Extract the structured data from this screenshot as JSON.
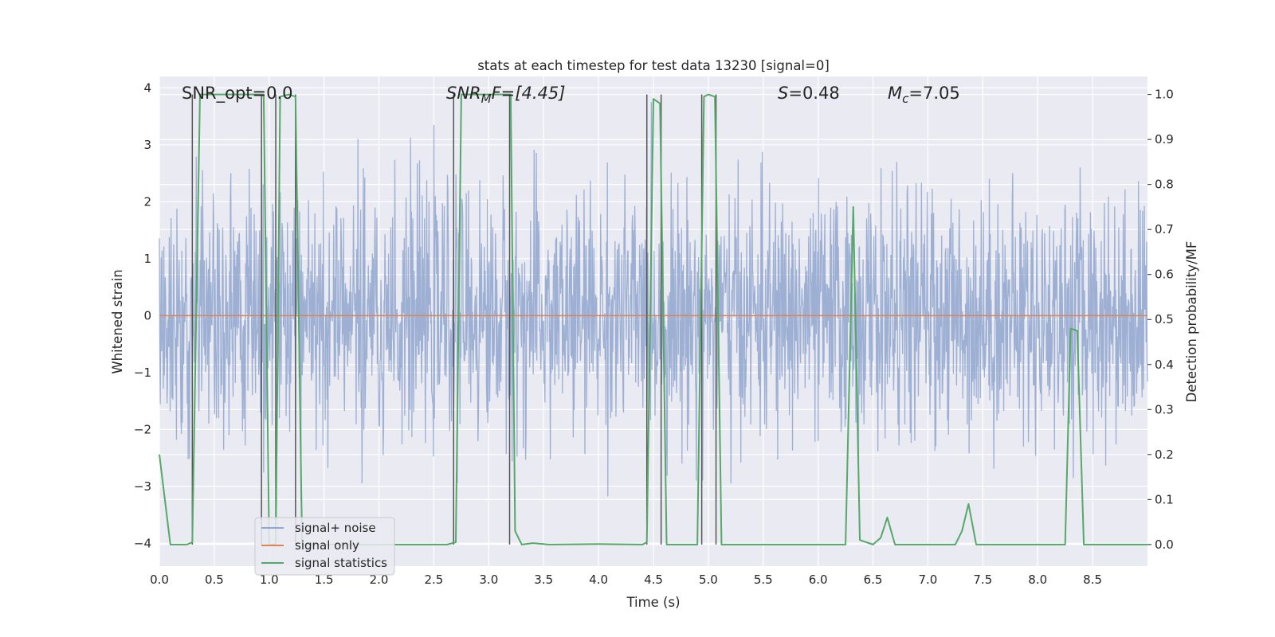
{
  "chart_data": {
    "type": "line",
    "title": "stats at each timestep for test data 13230 [signal=0]",
    "xlabel": "Time (s)",
    "ylabel": "Whitened strain",
    "ylabel_right": "Detection probability/MF",
    "xlim": [
      0.0,
      9.0
    ],
    "ylim": [
      -4.4,
      4.2
    ],
    "ylim_right": [
      -0.048,
      1.04
    ],
    "xticks": [
      "0.0",
      "0.5",
      "1.0",
      "1.5",
      "2.0",
      "2.5",
      "3.0",
      "3.5",
      "4.0",
      "4.5",
      "5.0",
      "5.5",
      "6.0",
      "6.5",
      "7.0",
      "7.5",
      "8.0",
      "8.5"
    ],
    "yticks": [
      "4",
      "3",
      "2",
      "1",
      "0",
      "−1",
      "−2",
      "−3",
      "−4"
    ],
    "yticks_right": [
      "1.0",
      "0.9",
      "0.8",
      "0.7",
      "0.6",
      "0.5",
      "0.4",
      "0.3",
      "0.2",
      "0.1",
      "0.0"
    ],
    "grid": true,
    "legend_position": "lower-left",
    "annotations": {
      "snr_opt": "SNR_opt=0.0",
      "snr_mf": "SNR",
      "snr_mf_sub": "M",
      "snr_mf_tail": "F=[4.45]",
      "s_var": "S",
      "s_val": "=0.48",
      "mc_var": "M",
      "mc_sub": "c",
      "mc_val": "=7.05"
    },
    "series": [
      {
        "name": "signal+ noise",
        "axis": "left",
        "color": "#8fa6cf",
        "description": "whitened noise, approximately Gaussian, visible envelope about ±2.5 with spikes to about ±3.7",
        "envelope": {
          "typical_max": 2.5,
          "typical_min": -2.5,
          "spike_max": 3.75,
          "spike_min": -4.1
        }
      },
      {
        "name": "signal only",
        "axis": "left",
        "color": "#dd8452",
        "x": [
          0.0,
          9.0
        ],
        "y": [
          0.0,
          0.0
        ]
      },
      {
        "name": "signal statistics",
        "axis": "right",
        "color": "#55a868",
        "x": [
          0.0,
          0.05,
          0.1,
          0.25,
          0.3,
          0.37,
          0.95,
          1.0,
          1.06,
          1.1,
          1.18,
          1.24,
          1.3,
          2.62,
          2.7,
          2.75,
          3.2,
          3.24,
          3.3,
          3.4,
          3.55,
          4.0,
          4.4,
          4.44,
          4.5,
          4.56,
          4.62,
          4.9,
          4.96,
          5.0,
          5.06,
          5.12,
          6.25,
          6.32,
          6.38,
          6.5,
          6.57,
          6.63,
          6.7,
          7.25,
          7.31,
          7.37,
          7.44,
          8.25,
          8.3,
          8.36,
          8.42,
          9.0
        ],
        "y": [
          0.2,
          0.1,
          0.0,
          0.0,
          0.005,
          1.0,
          1.0,
          0.0,
          0.0,
          0.995,
          1.0,
          0.995,
          0.0,
          0.0,
          0.005,
          1.0,
          1.0,
          0.03,
          0.0,
          0.003,
          0.0,
          0.001,
          0.0,
          0.005,
          0.99,
          0.98,
          0.0,
          0.0,
          0.995,
          1.0,
          0.995,
          0.0,
          0.0,
          0.75,
          0.01,
          0.0,
          0.015,
          0.06,
          0.0,
          0.0,
          0.03,
          0.09,
          0.0,
          0.0,
          0.48,
          0.475,
          0.0,
          0.0
        ]
      }
    ],
    "vertical_markers": {
      "color": "#555555",
      "x": [
        0.3,
        0.93,
        1.06,
        1.24,
        2.68,
        3.19,
        4.44,
        4.57,
        4.94,
        5.07
      ],
      "y_top": 1.0,
      "y_bottom": 0.0
    }
  }
}
